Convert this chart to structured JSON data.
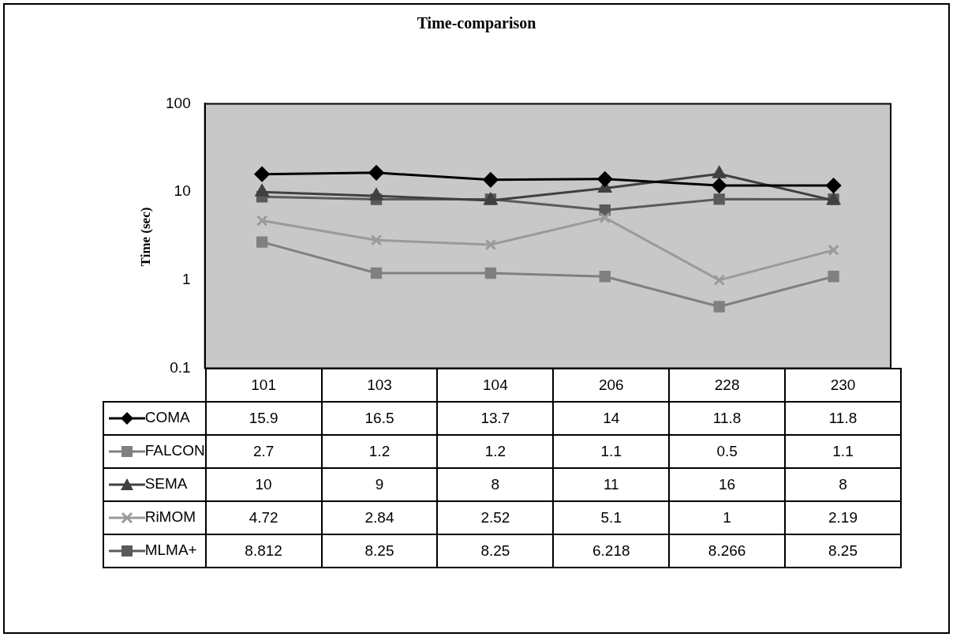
{
  "chart_data": {
    "type": "line",
    "title": "Time-comparison",
    "ylabel": "Time (sec)",
    "categories": [
      "101",
      "103",
      "104",
      "206",
      "228",
      "230"
    ],
    "log": true,
    "ylim": [
      0.1,
      100
    ],
    "yticks": [
      0.1,
      1,
      10,
      100
    ],
    "grid": false,
    "legend": "bottom",
    "data_labels": true,
    "line_style": "solid",
    "series": [
      {
        "name": "COMA",
        "color": "#000000",
        "marker": "diamond",
        "values": [
          15.9,
          16.5,
          13.7,
          14,
          11.8,
          11.8
        ]
      },
      {
        "name": "FALCON",
        "color": "#808080",
        "marker": "square",
        "values": [
          2.7,
          1.2,
          1.2,
          1.1,
          0.5,
          1.1
        ]
      },
      {
        "name": "SEMA",
        "color": "#404040",
        "marker": "triangle",
        "values": [
          10,
          9,
          8,
          11,
          16,
          8
        ]
      },
      {
        "name": "RiMOM",
        "color": "#9a9a9a",
        "marker": "cross",
        "values": [
          4.72,
          2.84,
          2.52,
          5.1,
          1,
          2.19
        ]
      },
      {
        "name": "MLMA+",
        "color": "#5a5a5a",
        "marker": "square",
        "values": [
          8.812,
          8.25,
          8.25,
          6.218,
          8.266,
          8.25
        ]
      }
    ]
  }
}
